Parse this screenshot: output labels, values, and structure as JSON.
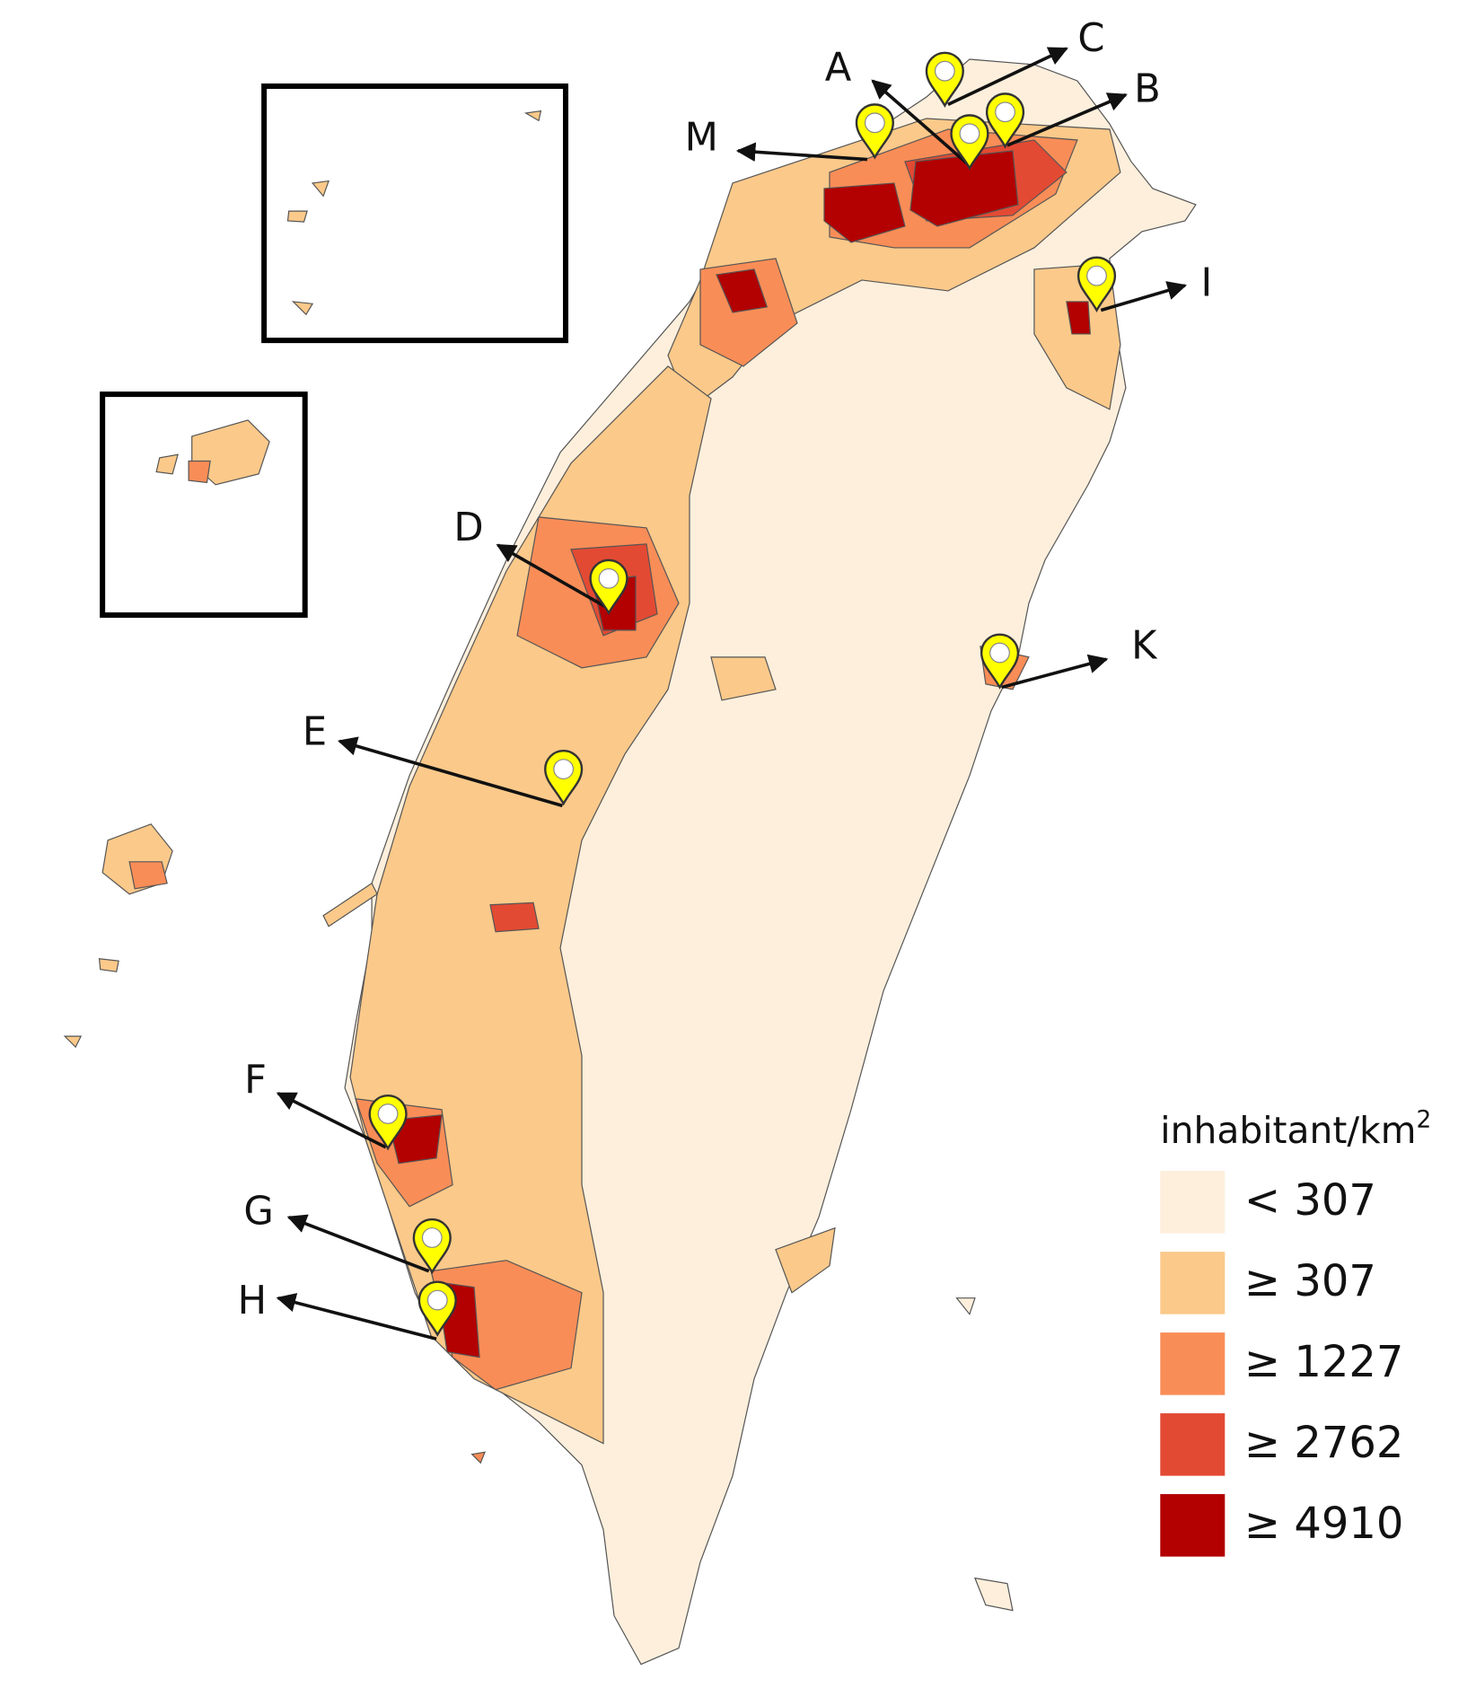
{
  "map": {
    "markers": [
      "A",
      "B",
      "C",
      "D",
      "E",
      "F",
      "G",
      "H",
      "I",
      "K",
      "M"
    ],
    "legend": {
      "title": "inhabitant/km",
      "title_superscript": "2",
      "items": [
        {
          "label": "< 307",
          "color": "#fdefdc"
        },
        {
          "label": "≥ 307",
          "color": "#fbc98a"
        },
        {
          "label": "≥ 1227",
          "color": "#f98d57"
        },
        {
          "label": "≥ 2762",
          "color": "#e34a33"
        },
        {
          "label": "≥ 4910",
          "color": "#b30000"
        }
      ]
    }
  }
}
